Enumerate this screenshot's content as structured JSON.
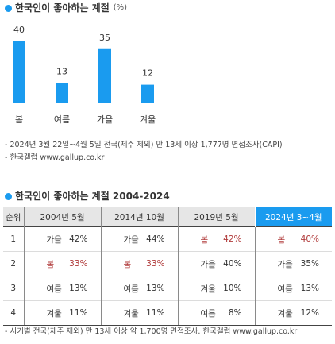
{
  "colors": {
    "accent": "#1a9bef",
    "spring": "#b03a3a",
    "header_bg": "#e6e6e6"
  },
  "chart_section": {
    "title": "한국인이 좋아하는 계절",
    "unit": "(%)"
  },
  "chart_data": {
    "type": "bar",
    "categories": [
      "봄",
      "여름",
      "가을",
      "겨울"
    ],
    "values": [
      40,
      13,
      35,
      12
    ],
    "ylim": [
      0,
      40
    ],
    "color": "#1a9bef"
  },
  "notes": [
    "- 2024년 3월 22일~4월 5일 전국(제주 제외) 만 13세 이상 1,777명 면접조사(CAPI)",
    "- 한국갤럽 www.gallup.co.kr"
  ],
  "table_section": {
    "title": "한국인이 좋아하는 계절 2004-2024"
  },
  "table": {
    "headers": [
      "순위",
      "2004년 5월",
      "2014년 10월",
      "2019년 5월",
      "2024년 3~4월"
    ],
    "rows": [
      {
        "rank": "1",
        "cells": [
          {
            "season": "가을",
            "pct": "42%"
          },
          {
            "season": "가을",
            "pct": "44%"
          },
          {
            "season": "봄",
            "pct": "42%"
          },
          {
            "season": "봄",
            "pct": "40%"
          }
        ]
      },
      {
        "rank": "2",
        "cells": [
          {
            "season": "봄",
            "pct": "33%"
          },
          {
            "season": "봄",
            "pct": "33%"
          },
          {
            "season": "가을",
            "pct": "40%"
          },
          {
            "season": "가을",
            "pct": "35%"
          }
        ]
      },
      {
        "rank": "3",
        "cells": [
          {
            "season": "여름",
            "pct": "13%"
          },
          {
            "season": "여름",
            "pct": "13%"
          },
          {
            "season": "겨울",
            "pct": "10%"
          },
          {
            "season": "여름",
            "pct": "13%"
          }
        ]
      },
      {
        "rank": "4",
        "cells": [
          {
            "season": "겨울",
            "pct": "11%"
          },
          {
            "season": "겨울",
            "pct": "11%"
          },
          {
            "season": "여름",
            "pct": "8%"
          },
          {
            "season": "겨울",
            "pct": "12%"
          }
        ]
      }
    ]
  },
  "footer_note": "- 시기별 전국(제주 제외) 만 13세 이상 약 1,700명 면접조사. 한국갤럽 www.gallup.co.kr"
}
